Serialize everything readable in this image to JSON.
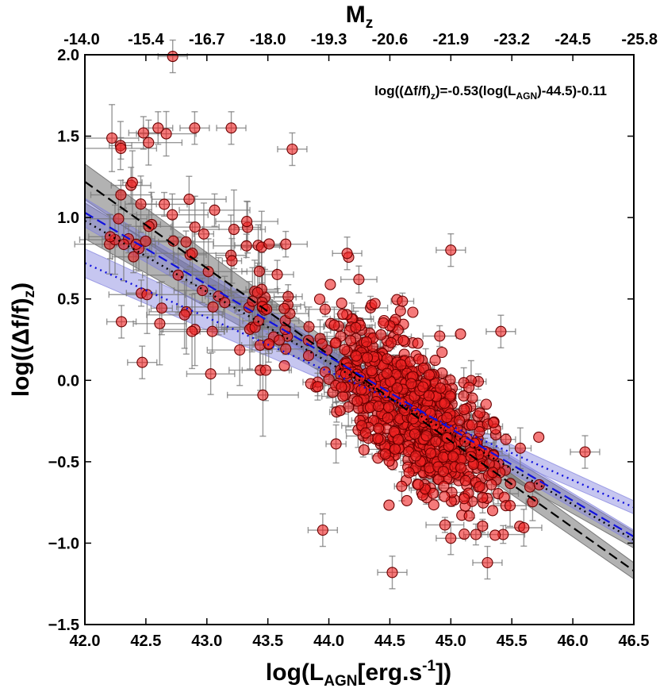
{
  "chart_data": {
    "type": "scatter",
    "title": "",
    "xlabel": "log(L_AGN[erg.s^-1])",
    "xlabel_parts": {
      "pre": "log(L",
      "sub": "AGN",
      "mid": "[erg.s",
      "sup": "-1",
      "post": "])"
    },
    "ylabel": "log((Δf/f)_z)",
    "ylabel_parts": {
      "pre": "log((Δf/f)",
      "sub": "z",
      "post": ")"
    },
    "top_xlabel": "M_z",
    "top_xlabel_parts": {
      "pre": "M",
      "sub": "z"
    },
    "xlim": [
      42.0,
      46.5
    ],
    "ylim": [
      -1.5,
      2.0
    ],
    "xticks": [
      "42.0",
      "42.5",
      "43.0",
      "43.5",
      "44.0",
      "44.5",
      "45.0",
      "45.5",
      "46.0",
      "46.5"
    ],
    "yticks": [
      "2.0",
      "1.5",
      "1.0",
      "0.5",
      "0.0",
      "−0.5",
      "−1.0",
      "−1.5"
    ],
    "top_xticks": [
      "-14.0",
      "-15.4",
      "-16.7",
      "-18.0",
      "-19.3",
      "-20.6",
      "-21.9",
      "-23.2",
      "-24.5",
      "-25.8"
    ],
    "annotation": {
      "pre": "log((Δf/f)",
      "sub": "z",
      "mid": ")=-0.53(log(L",
      "sub2": "AGN",
      "post": ")-44.5)-0.11"
    },
    "fit_lines": [
      {
        "name": "black dashed fit",
        "style": "dashed",
        "color": "#000000",
        "x": [
          42.0,
          46.5
        ],
        "y": [
          1.22,
          -1.17
        ],
        "band": 0.05,
        "band_color": "#555555"
      },
      {
        "name": "black dotted fit",
        "style": "dotted",
        "color": "#000000",
        "x": [
          42.0,
          46.5
        ],
        "y": [
          0.98,
          -0.98
        ],
        "band": 0.05,
        "band_color": "#555555"
      },
      {
        "name": "blue dashed fit",
        "style": "dashed",
        "color": "#1010dd",
        "x": [
          42.0,
          46.5
        ],
        "y": [
          1.03,
          -0.96
        ],
        "band": 0.04,
        "band_color": "#8080dd"
      },
      {
        "name": "blue dotted fit",
        "style": "dotted",
        "color": "#1010dd",
        "x": [
          42.0,
          46.5
        ],
        "y": [
          0.72,
          -0.78
        ],
        "band": 0.04,
        "band_color": "#8080dd"
      }
    ],
    "labeled_points": [
      {
        "x": 42.72,
        "y": 1.99
      },
      {
        "x": 42.48,
        "y": 1.52
      },
      {
        "x": 42.6,
        "y": 1.55
      },
      {
        "x": 42.9,
        "y": 1.55
      },
      {
        "x": 43.2,
        "y": 1.55
      },
      {
        "x": 43.7,
        "y": 1.42
      },
      {
        "x": 44.15,
        "y": 0.78
      },
      {
        "x": 45.0,
        "y": 0.8
      },
      {
        "x": 42.3,
        "y": 0.36
      },
      {
        "x": 42.47,
        "y": 0.11
      },
      {
        "x": 43.95,
        "y": -0.92
      },
      {
        "x": 44.52,
        "y": -1.18
      },
      {
        "x": 46.1,
        "y": -0.44
      },
      {
        "x": 45.41,
        "y": 0.3
      },
      {
        "x": 45.0,
        "y": -0.97
      },
      {
        "x": 45.3,
        "y": -1.12
      }
    ],
    "series": [
      {
        "name": "AGN sources",
        "marker": "circle",
        "color": "#ee2222",
        "n_points": 900,
        "relation": {
          "slope": -0.53,
          "pivot": 44.5,
          "intercept": -0.11
        },
        "x_core": {
          "mean": 44.7,
          "sd": 0.35,
          "range": [
            43.3,
            45.9
          ]
        },
        "scatter_sd": 0.22
      }
    ]
  }
}
